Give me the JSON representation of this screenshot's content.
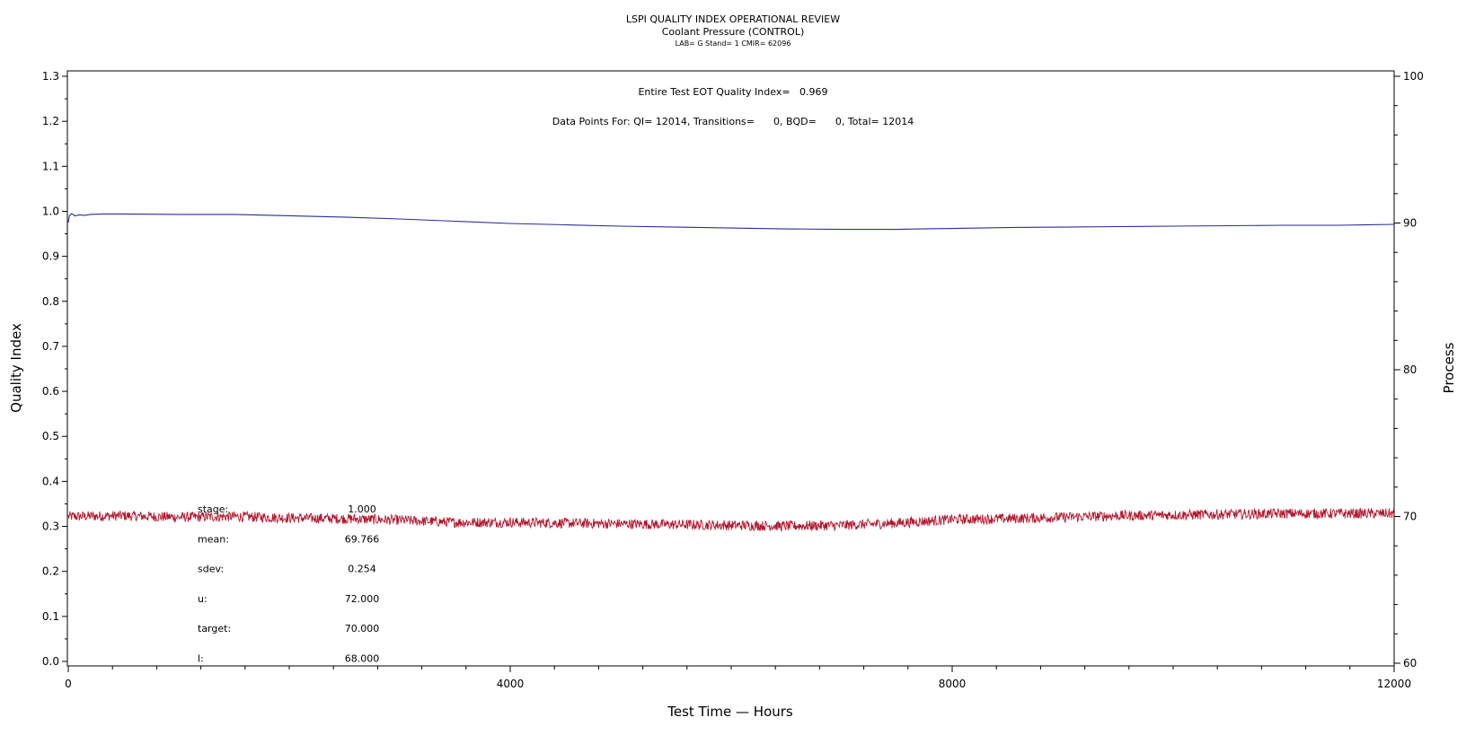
{
  "chart_data": {
    "type": "line",
    "title": "LSPI QUALITY INDEX OPERATIONAL REVIEW",
    "subtitle": "Coolant Pressure (CONTROL)",
    "subtitle2": "LAB= G Stand= 1 CMIR= 62096",
    "xlabel": "Test Time — Hours",
    "ylabel": "Quality Index",
    "y2label": "Process",
    "xlim": [
      0,
      12000
    ],
    "ylim": [
      0,
      1.3
    ],
    "y2lim": [
      60,
      100
    ],
    "x_ticks": [
      0,
      4000,
      8000,
      12000
    ],
    "y_ticks": [
      0.0,
      0.1,
      0.2,
      0.3,
      0.4,
      0.5,
      0.6,
      0.7,
      0.8,
      0.9,
      1.0,
      1.1,
      1.2,
      1.3
    ],
    "y_tick_labels": [
      "0.0",
      "0.1",
      "0.2",
      "0.3",
      "0.4",
      "0.5",
      "0.6",
      "0.7",
      "0.8",
      "0.9",
      "1.0",
      "1.1",
      "1.2",
      "1.3"
    ],
    "y2_ticks": [
      60,
      70,
      80,
      90,
      100
    ],
    "grid": false,
    "annotation_line1": "Entire Test EOT Quality Index=   0.969",
    "annotation_line2": "Data Points For: QI= 12014, Transitions=      0, BQD=      0, Total= 12014",
    "stats": [
      {
        "label": "stage:",
        "value": "1.000"
      },
      {
        "label": "mean:",
        "value": "69.766"
      },
      {
        "label": "sdev:",
        "value": "0.254"
      },
      {
        "label": "u:",
        "value": "72.000"
      },
      {
        "label": "target:",
        "value": "70.000"
      },
      {
        "label": "l:",
        "value": "68.000"
      }
    ],
    "series": [
      {
        "axis": "left",
        "color": "#2b2b9b",
        "x": [
          0,
          10,
          30,
          60,
          100,
          150,
          200,
          300,
          500,
          1000,
          1500,
          2000,
          2500,
          3000,
          3500,
          4000,
          4500,
          5000,
          5500,
          6000,
          6500,
          7000,
          7500,
          8000,
          8500,
          9000,
          9500,
          10000,
          10500,
          11000,
          11500,
          12000
        ],
        "values": [
          0.975,
          0.99,
          0.995,
          0.99,
          0.992,
          0.991,
          0.993,
          0.994,
          0.994,
          0.993,
          0.993,
          0.99,
          0.987,
          0.983,
          0.978,
          0.973,
          0.97,
          0.967,
          0.965,
          0.963,
          0.961,
          0.96,
          0.96,
          0.962,
          0.964,
          0.965,
          0.966,
          0.967,
          0.968,
          0.969,
          0.969,
          0.971
        ]
      },
      {
        "axis": "right",
        "color": "#b0172e",
        "x": [
          0,
          500,
          1000,
          1500,
          2000,
          2500,
          3000,
          3500,
          4000,
          4500,
          5000,
          5500,
          6000,
          6500,
          7000,
          7500,
          8000,
          8500,
          9000,
          9500,
          10000,
          10500,
          11000,
          11500,
          12000
        ],
        "values": [
          70.0,
          70.05,
          69.95,
          70.0,
          69.9,
          69.85,
          69.75,
          69.6,
          69.6,
          69.55,
          69.5,
          69.45,
          69.4,
          69.35,
          69.4,
          69.55,
          69.8,
          69.85,
          69.95,
          70.05,
          70.1,
          70.15,
          70.2,
          70.2,
          70.2
        ],
        "noise_amplitude": 0.35
      }
    ]
  }
}
